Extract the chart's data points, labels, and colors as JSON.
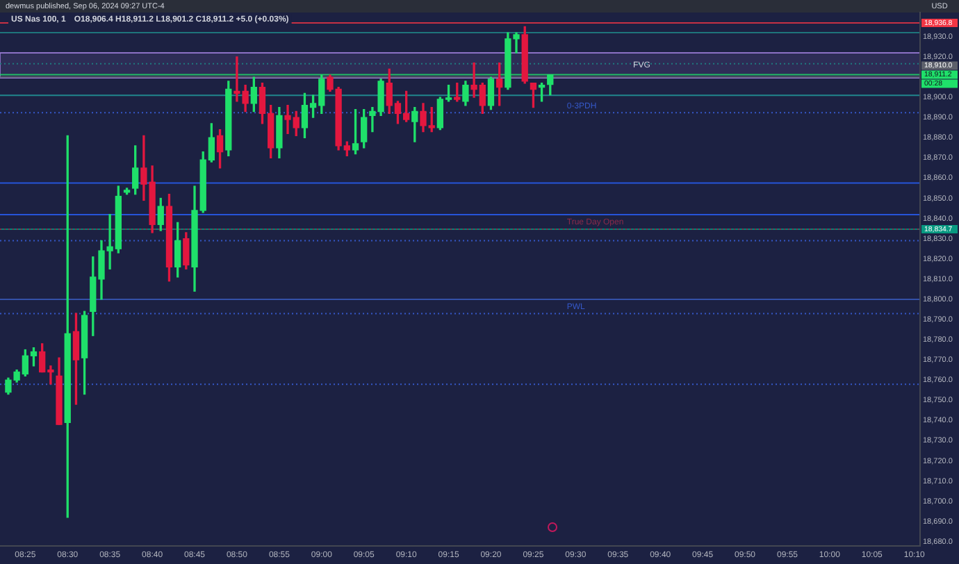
{
  "chart_data": {
    "type": "candlestick",
    "title": "US Nas 100, 1",
    "subtitle": "O18,906.4 H18,911.2 L18,901.2 C18,911.2 +5.0 (+0.03%)",
    "x": [
      8.3833,
      8.4,
      8.4167,
      8.4333,
      8.45,
      8.4667,
      8.4833,
      8.5,
      8.5167,
      8.5333,
      8.55,
      8.5667,
      8.5833,
      8.6,
      8.6167,
      8.6333,
      8.65,
      8.6667,
      8.6833,
      8.7,
      8.7167,
      8.7333,
      8.75,
      8.7667,
      8.7833,
      8.8,
      8.8167,
      8.8333,
      8.85,
      8.8667,
      8.8833,
      8.9,
      8.9167,
      8.9333,
      8.95,
      8.9667,
      8.9833,
      9.0,
      9.0167,
      9.0333,
      9.05,
      9.0667,
      9.0833,
      9.1,
      9.1167,
      9.1333,
      9.15,
      9.1667,
      9.1833,
      9.2,
      9.2167,
      9.2333,
      9.25,
      9.2667,
      9.2833,
      9.3,
      9.3167,
      9.3333,
      9.35,
      9.3667,
      9.3833,
      9.4,
      9.4167,
      9.4333,
      9.45
    ],
    "ohlc": [
      [
        18754,
        18761,
        18753,
        18760
      ],
      [
        18760,
        18765,
        18759,
        18764
      ],
      [
        18763,
        18775,
        18762,
        18772
      ],
      [
        18772,
        18776,
        18767,
        18774
      ],
      [
        18774,
        18778,
        18764,
        18764
      ],
      [
        18765,
        18767,
        18758,
        18764
      ],
      [
        18762,
        18771,
        18738,
        18738
      ],
      [
        18739,
        18881,
        18692,
        18783
      ],
      [
        18784,
        18793,
        18748,
        18770
      ],
      [
        18771,
        18794,
        18753,
        18792
      ],
      [
        18794,
        18821,
        18782,
        18811
      ],
      [
        18810,
        18829,
        18800,
        18824
      ],
      [
        18824,
        18842,
        18815,
        18826
      ],
      [
        18825,
        18856,
        18823,
        18851
      ],
      [
        18853,
        18855,
        18852,
        18854
      ],
      [
        18855,
        18876,
        18852,
        18865
      ],
      [
        18865,
        18881,
        18849,
        18857
      ],
      [
        18858,
        18866,
        18833,
        18837
      ],
      [
        18837,
        18850,
        18834,
        18846
      ],
      [
        18846,
        18852,
        18809,
        18816
      ],
      [
        18816,
        18838,
        18811,
        18829
      ],
      [
        18830,
        18833,
        18815,
        18817
      ],
      [
        18816,
        18856,
        18804,
        18844
      ],
      [
        18844,
        18873,
        18843,
        18869
      ],
      [
        18869,
        18887,
        18868,
        18880
      ],
      [
        18881,
        18884,
        18865,
        18873
      ],
      [
        18874,
        18908,
        18871,
        18904
      ],
      [
        18903,
        18920,
        18898,
        18902
      ],
      [
        18903,
        18906,
        18893,
        18897
      ],
      [
        18897,
        18910,
        18893,
        18905
      ],
      [
        18905,
        18907,
        18887,
        18892
      ],
      [
        18892,
        18896,
        18870,
        18875
      ],
      [
        18875,
        18895,
        18870,
        18891
      ],
      [
        18891,
        18896,
        18882,
        18889
      ],
      [
        18890,
        18893,
        18881,
        18885
      ],
      [
        18885,
        18902,
        18880,
        18896
      ],
      [
        18895,
        18901,
        18890,
        18897
      ],
      [
        18896,
        18911,
        18892,
        18909
      ],
      [
        18910,
        18911,
        18903,
        18904
      ],
      [
        18904,
        18905,
        18874,
        18876
      ],
      [
        18876,
        18878,
        18871,
        18874
      ],
      [
        18874,
        18894,
        18872,
        18877
      ],
      [
        18878,
        18894,
        18875,
        18890
      ],
      [
        18891,
        18895,
        18883,
        18893
      ],
      [
        18893,
        18909,
        18891,
        18908
      ],
      [
        18907,
        18914,
        18892,
        18896
      ],
      [
        18897,
        18898,
        18887,
        18892
      ],
      [
        18892,
        18903,
        18888,
        18889
      ],
      [
        18888,
        18895,
        18878,
        18893
      ],
      [
        18893,
        18897,
        18883,
        18886
      ],
      [
        18886,
        18895,
        18883,
        18885
      ],
      [
        18885,
        18900,
        18884,
        18899
      ],
      [
        18899,
        18906,
        18898,
        18899
      ],
      [
        18900,
        18907,
        18898,
        18899
      ],
      [
        18898,
        18908,
        18896,
        18906
      ],
      [
        18906,
        18917,
        18900,
        18904
      ],
      [
        18906,
        18907,
        18892,
        18896
      ],
      [
        18896,
        18910,
        18894,
        18909
      ],
      [
        18909,
        18917,
        18896,
        18905
      ],
      [
        18905,
        18932,
        18904,
        18929
      ],
      [
        18929,
        18932,
        18922,
        18931
      ],
      [
        18931,
        18935,
        18907,
        18908
      ],
      [
        18907,
        18907,
        18895,
        18904
      ],
      [
        18905,
        18907,
        18898,
        18906
      ],
      [
        18906.4,
        18911.2,
        18901.2,
        18911.2
      ]
    ],
    "xlim": [
      8.367,
      10.178
    ],
    "xticks": [
      {
        "value": 8.4167,
        "label": "08:25"
      },
      {
        "value": 8.5,
        "label": "08:30"
      },
      {
        "value": 8.5833,
        "label": "08:35"
      },
      {
        "value": 8.6667,
        "label": "08:40"
      },
      {
        "value": 8.75,
        "label": "08:45"
      },
      {
        "value": 8.8333,
        "label": "08:50"
      },
      {
        "value": 8.9167,
        "label": "08:55"
      },
      {
        "value": 9,
        "label": "09:00"
      },
      {
        "value": 9.0833,
        "label": "09:05"
      },
      {
        "value": 9.1667,
        "label": "09:10"
      },
      {
        "value": 9.25,
        "label": "09:15"
      },
      {
        "value": 9.3333,
        "label": "09:20"
      },
      {
        "value": 9.4167,
        "label": "09:25"
      },
      {
        "value": 9.5,
        "label": "09:30"
      },
      {
        "value": 9.5833,
        "label": "09:35"
      },
      {
        "value": 9.6667,
        "label": "09:40"
      },
      {
        "value": 9.75,
        "label": "09:45"
      },
      {
        "value": 9.8333,
        "label": "09:50"
      },
      {
        "value": 9.9167,
        "label": "09:55"
      },
      {
        "value": 10,
        "label": "10:00"
      },
      {
        "value": 10.0833,
        "label": "10:05"
      },
      {
        "value": 10.1667,
        "label": "10:10"
      }
    ],
    "ylim": [
      18678,
      18942
    ],
    "yticks": [
      {
        "value": 18680,
        "label": "18,680.0"
      },
      {
        "value": 18690,
        "label": "18,690.0"
      },
      {
        "value": 18700,
        "label": "18,700.0"
      },
      {
        "value": 18710,
        "label": "18,710.0"
      },
      {
        "value": 18720,
        "label": "18,720.0"
      },
      {
        "value": 18730,
        "label": "18,730.0"
      },
      {
        "value": 18740,
        "label": "18,740.0"
      },
      {
        "value": 18750,
        "label": "18,750.0"
      },
      {
        "value": 18760,
        "label": "18,760.0"
      },
      {
        "value": 18770,
        "label": "18,770.0"
      },
      {
        "value": 18780,
        "label": "18,780.0"
      },
      {
        "value": 18790,
        "label": "18,790.0"
      },
      {
        "value": 18800,
        "label": "18,800.0"
      },
      {
        "value": 18810,
        "label": "18,810.0"
      },
      {
        "value": 18820,
        "label": "18,820.0"
      },
      {
        "value": 18830,
        "label": "18,830.0"
      },
      {
        "value": 18840,
        "label": "18,840.0"
      },
      {
        "value": 18850,
        "label": "18,850.0"
      },
      {
        "value": 18860,
        "label": "18,860.0"
      },
      {
        "value": 18870,
        "label": "18,870.0"
      },
      {
        "value": 18880,
        "label": "18,880.0"
      },
      {
        "value": 18890,
        "label": "18,890.0"
      },
      {
        "value": 18900,
        "label": "18,900.0"
      },
      {
        "value": 18920,
        "label": "18,920.0"
      },
      {
        "value": 18930,
        "label": "18,930.0"
      }
    ],
    "ref_lines": [
      {
        "axis": "y",
        "value": 18936.8,
        "label": "18,936.8",
        "color": "#f23645",
        "line_style": "solid"
      },
      {
        "axis": "y",
        "value": 18911.2,
        "label": "18,911.2",
        "color": "#1fe06a",
        "line_style": "solid"
      },
      {
        "axis": "y",
        "value": 18910,
        "label": "18,910.0",
        "color": "#5d606b",
        "line_style": "solid"
      },
      {
        "axis": "y",
        "value": 18834.7,
        "label": "18,834.7",
        "color": "#089981",
        "line_style": "solid"
      },
      {
        "axis": "y",
        "value": 18932,
        "color": "#1f8a8a",
        "line_style": "solid"
      },
      {
        "axis": "y",
        "value": 18916.6,
        "color": "#1f7a80",
        "line_style": "dotted"
      },
      {
        "axis": "y",
        "value": 18901,
        "color": "#22a0a0",
        "line_style": "solid"
      },
      {
        "axis": "y",
        "value": 18892.4,
        "label": "0-3PDH",
        "color": "#3558c8",
        "line_style": "dotted"
      },
      {
        "axis": "y",
        "value": 18857.6,
        "color": "#2962ff",
        "line_style": "solid"
      },
      {
        "axis": "y",
        "value": 18841.9,
        "color": "#2962ff",
        "line_style": "solid"
      },
      {
        "axis": "y",
        "value": 18834.7,
        "label": "True Day Open",
        "color": "#8c2a4a",
        "line_style": "dotted"
      },
      {
        "axis": "y",
        "value": 18829,
        "color": "#3558c8",
        "line_style": "dotted"
      },
      {
        "axis": "y",
        "value": 18800,
        "color": "#3a5cc0",
        "line_style": "solid"
      },
      {
        "axis": "y",
        "value": 18792.9,
        "label": "PWL",
        "color": "#3558c8",
        "line_style": "dotted"
      },
      {
        "axis": "y",
        "value": 18757.9,
        "color": "#3558c8",
        "line_style": "dotted"
      }
    ],
    "bands": [
      {
        "axis": "y",
        "from": 18909.6,
        "to": 18922,
        "label": "FVG",
        "color": "#9c7cd8"
      }
    ],
    "annotations": [
      "dewmus published, Sep 06, 2024 09:27 UTC-4",
      "USD",
      "00:28"
    ],
    "grid": false,
    "legend": false
  }
}
